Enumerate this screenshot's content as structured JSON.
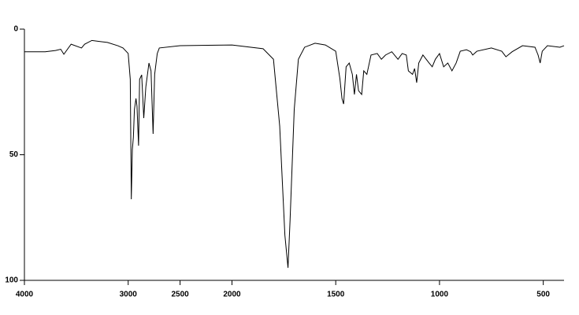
{
  "chart_data": {
    "type": "line",
    "x": [
      4000,
      3800,
      3700,
      3650,
      3620,
      3550,
      3450,
      3420,
      3350,
      3200,
      3100,
      3050,
      3000,
      2980,
      2970,
      2960,
      2950,
      2940,
      2925,
      2915,
      2900,
      2890,
      2870,
      2850,
      2830,
      2800,
      2780,
      2760,
      2745,
      2720,
      2700,
      2500,
      2000,
      1850,
      1800,
      1770,
      1745,
      1730,
      1720,
      1700,
      1680,
      1650,
      1600,
      1550,
      1500,
      1480,
      1470,
      1462,
      1450,
      1435,
      1420,
      1410,
      1400,
      1390,
      1375,
      1365,
      1350,
      1330,
      1300,
      1280,
      1260,
      1230,
      1200,
      1180,
      1160,
      1150,
      1130,
      1120,
      1110,
      1100,
      1080,
      1050,
      1035,
      1020,
      1000,
      980,
      960,
      940,
      920,
      900,
      870,
      850,
      840,
      820,
      750,
      700,
      680,
      650,
      600,
      540,
      525,
      515,
      505,
      480,
      420,
      400
    ],
    "series": [
      {
        "color": "#000000",
        "values": [
          9,
          9,
          8.5,
          8,
          10,
          6,
          7.5,
          6,
          4.5,
          5.3,
          6.6,
          7.5,
          9.7,
          20,
          67.7,
          48,
          43,
          32,
          27.6,
          30.7,
          46.4,
          20,
          18.2,
          35.4,
          23,
          13.5,
          16.6,
          41.7,
          18,
          9.7,
          7.5,
          6.6,
          6.3,
          7.8,
          12,
          38.6,
          82,
          95,
          76,
          32,
          12,
          7.2,
          5.6,
          6.3,
          8.8,
          19.7,
          27.6,
          29.8,
          15,
          13.5,
          18,
          26,
          18,
          24.5,
          26,
          16.6,
          18,
          10.3,
          9.7,
          12,
          10.3,
          9,
          12,
          9.7,
          10.3,
          16.6,
          18,
          15.7,
          21.3,
          13.5,
          10.3,
          13.5,
          15,
          12,
          9.7,
          15,
          13.5,
          16.6,
          13.5,
          8.8,
          8.2,
          9,
          10.3,
          8.8,
          7.5,
          8.8,
          11,
          9,
          6.6,
          7.2,
          10.3,
          13.5,
          8.8,
          6.6,
          7.2,
          6.6
        ]
      }
    ],
    "xlim": [
      4000,
      400
    ],
    "xticks": [
      4000,
      3000,
      2500,
      2000,
      1500,
      1000,
      500
    ],
    "x_scale_break": 2000,
    "x_scale_ratio": 2,
    "ylim": [
      0,
      100
    ],
    "yticks": [
      0,
      50,
      100
    ],
    "y_reversed": true
  }
}
